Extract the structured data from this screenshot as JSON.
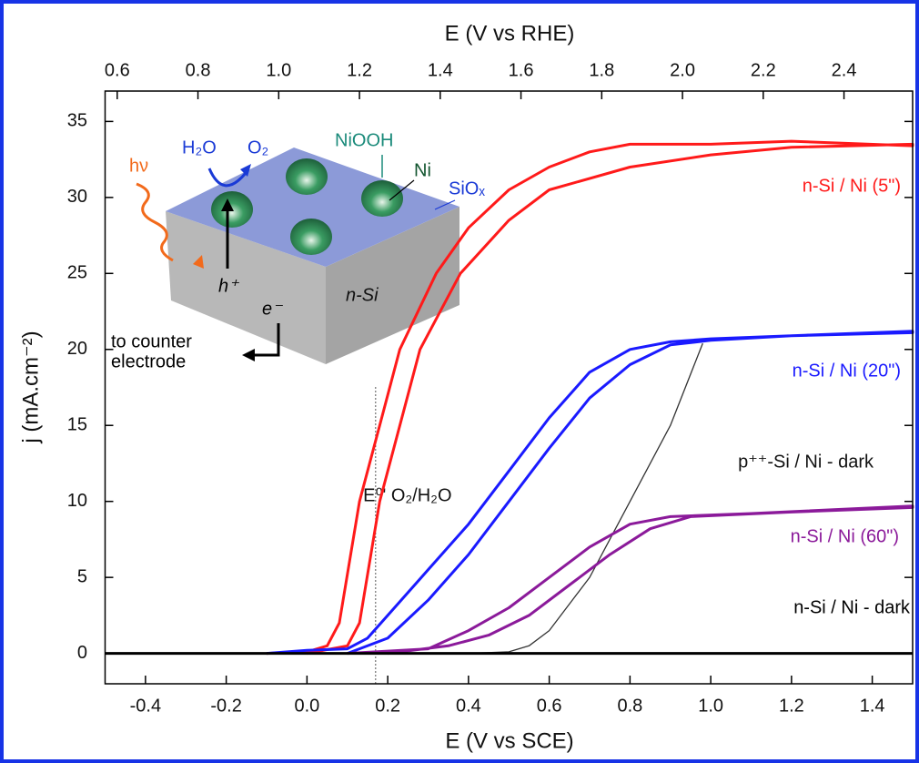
{
  "chart_data": {
    "type": "line",
    "xlabel": "E (V vs SCE)",
    "x2label": "E (V vs RHE)",
    "ylabel": "j (mA.cm⁻²)",
    "xlim": [
      -0.5,
      1.5
    ],
    "x2lim": [
      0.57,
      2.57
    ],
    "ylim": [
      -2,
      37
    ],
    "xticks": [
      -0.4,
      -0.2,
      {
        "value": 0,
        "label": "0.0"
      },
      0.2,
      0.4,
      0.6,
      0.8,
      {
        "value": 1,
        "label": "1.0"
      },
      1.2,
      1.4
    ],
    "x2ticks": [
      0.6,
      0.8,
      {
        "value": 1,
        "label": "1.0"
      },
      1.2,
      1.4,
      1.6,
      1.8,
      {
        "value": 2,
        "label": "2.0"
      },
      2.2,
      2.4
    ],
    "yticks": [
      0,
      5,
      10,
      15,
      20,
      25,
      30,
      35
    ],
    "series": [
      {
        "name": "n-Si / Ni (5\")",
        "color": "#ff1a1a",
        "x": [
          -0.1,
          0.0,
          0.05,
          0.08,
          0.13,
          0.18,
          0.23,
          0.32,
          0.4,
          0.5,
          0.6,
          0.7,
          0.8,
          1.0,
          1.2,
          1.5,
          1.5,
          1.2,
          1.0,
          0.8,
          0.6,
          0.5,
          0.38,
          0.28,
          0.18,
          0.13,
          0.1,
          0.0
        ],
        "values": [
          0,
          0.1,
          0.5,
          2,
          10,
          15,
          20,
          25,
          28,
          30.5,
          32,
          33,
          33.5,
          33.5,
          33.7,
          33.4,
          33.5,
          33.3,
          32.8,
          32,
          30.5,
          28.5,
          25,
          20,
          10,
          2,
          0.5,
          0
        ]
      },
      {
        "name": "n-Si / Ni (20\")",
        "color": "#1a1aff",
        "x": [
          -0.1,
          0.0,
          0.1,
          0.15,
          0.2,
          0.3,
          0.4,
          0.5,
          0.6,
          0.7,
          0.8,
          0.9,
          1.0,
          1.2,
          1.5,
          1.5,
          1.2,
          1.0,
          0.9,
          0.8,
          0.7,
          0.6,
          0.5,
          0.4,
          0.3,
          0.2,
          0.1
        ],
        "values": [
          0,
          0.2,
          0.3,
          1,
          2.5,
          5.5,
          8.5,
          12,
          15.5,
          18.5,
          20,
          20.5,
          20.7,
          20.9,
          21.2,
          21.1,
          20.9,
          20.6,
          20.3,
          19,
          16.8,
          13.5,
          10,
          6.5,
          3.5,
          1,
          0
        ]
      },
      {
        "name": "p⁺⁺-Si / Ni - dark",
        "color": "#333333",
        "x": [
          0.4,
          0.5,
          0.55,
          0.6,
          0.7,
          0.8,
          0.9,
          0.98
        ],
        "values": [
          0,
          0.1,
          0.5,
          1.5,
          5,
          10,
          15,
          20.4
        ]
      },
      {
        "name": "n-Si / Ni (60\")",
        "color": "#8b1a9a",
        "x": [
          0.1,
          0.3,
          0.4,
          0.5,
          0.6,
          0.7,
          0.8,
          0.9,
          1.1,
          1.5,
          1.5,
          1.2,
          0.95,
          0.85,
          0.75,
          0.65,
          0.55,
          0.45,
          0.35,
          0.2
        ],
        "values": [
          0,
          0.3,
          1.5,
          3,
          5,
          7,
          8.5,
          9,
          9.2,
          9.7,
          9.6,
          9.3,
          9,
          8.2,
          6.5,
          4.5,
          2.5,
          1.2,
          0.5,
          0
        ]
      },
      {
        "name": "n-Si / Ni - dark",
        "color": "#000000",
        "x": [
          -0.5,
          1.5
        ],
        "values": [
          0,
          0
        ]
      }
    ],
    "reference_line": {
      "label": "E⁰' O₂/H₂O",
      "x": 0.17
    },
    "inset": {
      "labels": [
        "hν",
        "H₂O",
        "O₂",
        "NiOOH",
        "Ni",
        "SiOₓ",
        "h⁺",
        "e⁻",
        "n-Si",
        "to counter",
        "electrode"
      ]
    }
  }
}
